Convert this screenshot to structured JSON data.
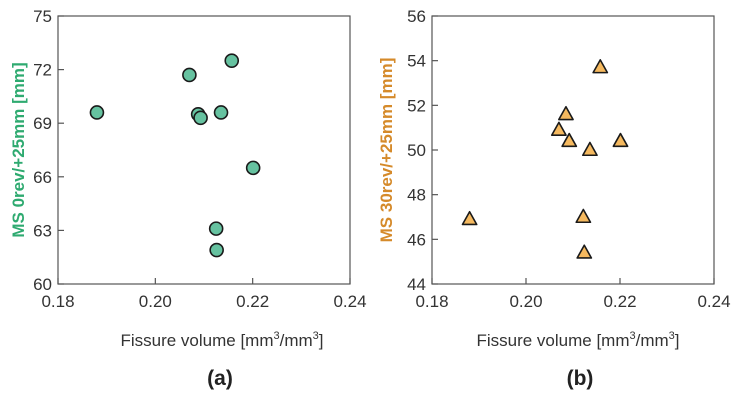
{
  "chart_data": [
    {
      "type": "scatter",
      "panel_label": "(a)",
      "xlabel_main": "Fissure volume [mm",
      "xlabel_sup1": "3",
      "xlabel_mid": "/mm",
      "xlabel_sup2": "3",
      "xlabel_end": "]",
      "ylabel": "MS 0rev/+25mm [mm]",
      "xlim": [
        0.18,
        0.24
      ],
      "ylim": [
        60,
        75
      ],
      "xticks": [
        "0.18",
        "0.20",
        "0.22",
        "0.24"
      ],
      "yticks": [
        "60",
        "63",
        "66",
        "69",
        "72",
        "75"
      ],
      "marker": "circle",
      "marker_color": "#66c2a0",
      "label_color": "#2eaa70",
      "points": [
        {
          "x": 0.188,
          "y": 69.6
        },
        {
          "x": 0.207,
          "y": 71.7
        },
        {
          "x": 0.2088,
          "y": 69.5
        },
        {
          "x": 0.2093,
          "y": 69.3
        },
        {
          "x": 0.2125,
          "y": 63.1
        },
        {
          "x": 0.2126,
          "y": 61.9
        },
        {
          "x": 0.2135,
          "y": 69.6
        },
        {
          "x": 0.2157,
          "y": 72.5
        },
        {
          "x": 0.2201,
          "y": 66.5
        }
      ]
    },
    {
      "type": "scatter",
      "panel_label": "(b)",
      "xlabel_main": "Fissure volume [mm",
      "xlabel_sup1": "3",
      "xlabel_mid": "/mm",
      "xlabel_sup2": "3",
      "xlabel_end": "]",
      "ylabel": "MS 30rev/+25mm [mm]",
      "xlim": [
        0.18,
        0.24
      ],
      "ylim": [
        44,
        56
      ],
      "xticks": [
        "0.18",
        "0.20",
        "0.22",
        "0.24"
      ],
      "yticks": [
        "44",
        "46",
        "48",
        "50",
        "52",
        "54",
        "56"
      ],
      "marker": "triangle",
      "marker_color": "#f5b95f",
      "label_color": "#d58a2a",
      "points": [
        {
          "x": 0.188,
          "y": 46.9
        },
        {
          "x": 0.207,
          "y": 50.9
        },
        {
          "x": 0.2085,
          "y": 51.6
        },
        {
          "x": 0.2092,
          "y": 50.4
        },
        {
          "x": 0.2122,
          "y": 47.0
        },
        {
          "x": 0.2124,
          "y": 45.4
        },
        {
          "x": 0.2136,
          "y": 50.0
        },
        {
          "x": 0.2158,
          "y": 53.7
        },
        {
          "x": 0.2201,
          "y": 50.4
        }
      ]
    }
  ]
}
